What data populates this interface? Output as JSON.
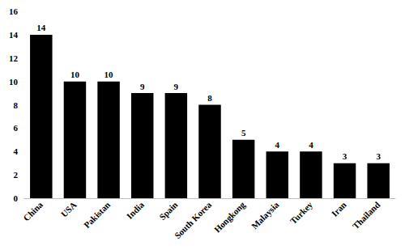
{
  "chart_data": {
    "type": "bar",
    "categories": [
      "China",
      "USA",
      "Pakistan",
      "India",
      "Spain",
      "South Korea",
      "Hongkong",
      "Malaysia",
      "Turkey",
      "Iran",
      "Thailand"
    ],
    "values": [
      14,
      10,
      10,
      9,
      9,
      8,
      5,
      4,
      4,
      3,
      3
    ],
    "color": "#000000",
    "ylim": [
      0,
      16
    ],
    "yticks": [
      0,
      2,
      4,
      6,
      8,
      10,
      12,
      14,
      16
    ],
    "grid": false,
    "data_labels": true
  }
}
